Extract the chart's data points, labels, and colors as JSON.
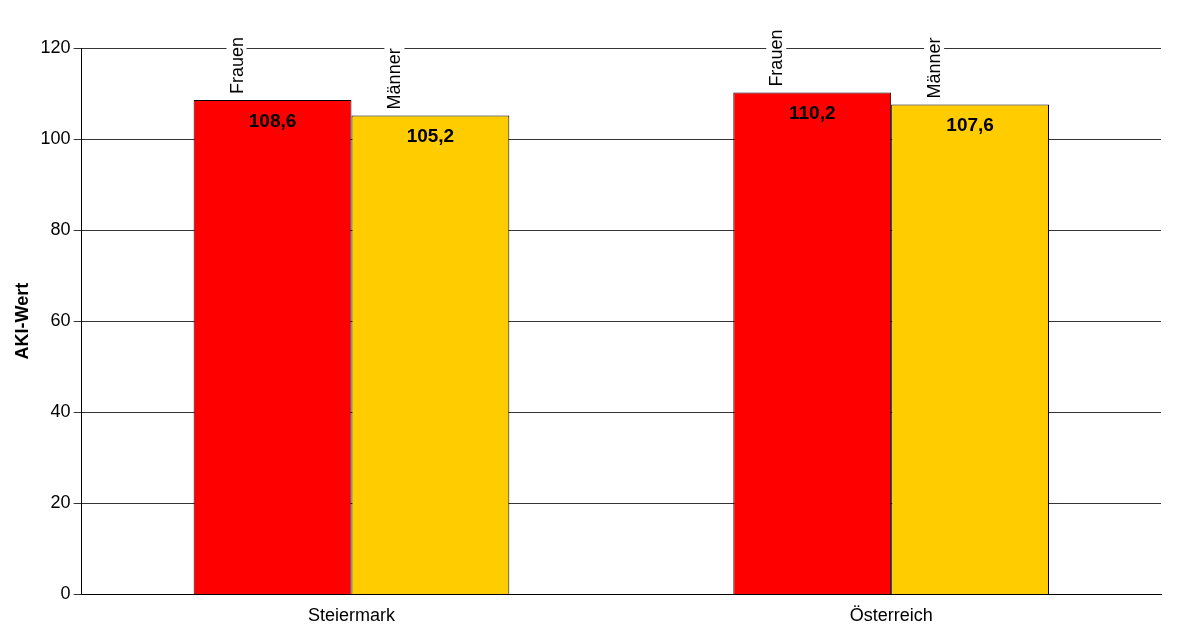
{
  "chart_data": {
    "type": "bar",
    "ylabel": "AKI-Wert",
    "categories": [
      "Steiermark",
      "Österreich"
    ],
    "series": [
      {
        "name": "Frauen",
        "color": "#ff0000",
        "values": [
          108.6,
          110.2
        ],
        "value_labels": [
          "108,6",
          "110,2"
        ]
      },
      {
        "name": "Männer",
        "color": "#ffcc00",
        "values": [
          105.2,
          107.6
        ],
        "value_labels": [
          "105,2",
          "107,6"
        ]
      }
    ],
    "ylim": [
      0,
      120
    ],
    "yticks": [
      0,
      20,
      40,
      60,
      80,
      100,
      120
    ],
    "grid": "y",
    "legend": false
  }
}
